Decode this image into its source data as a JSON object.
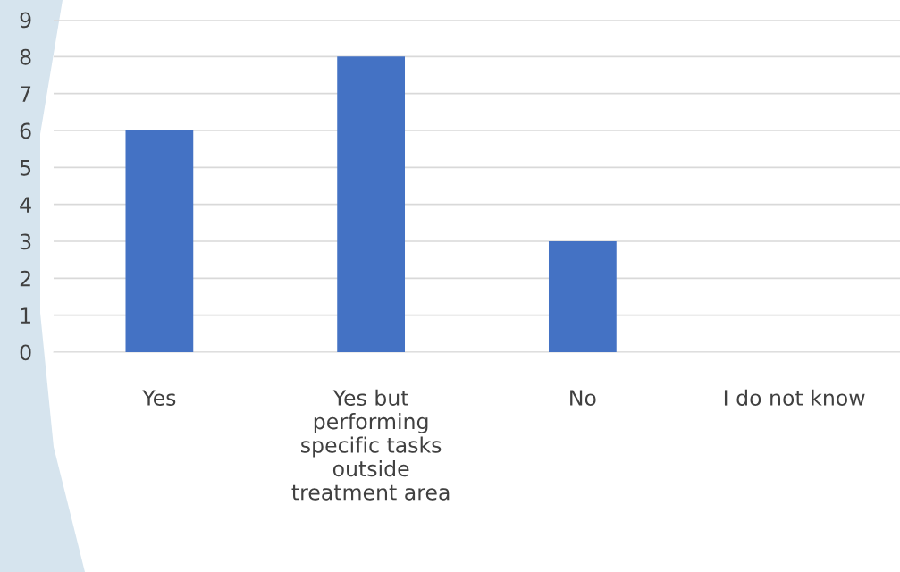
{
  "chart_data": {
    "type": "bar",
    "categories": [
      "Yes",
      "Yes but\nperforming\nspecific tasks\noutside\ntreatment area",
      "No",
      "I do not know"
    ],
    "values": [
      6,
      8,
      3,
      0
    ],
    "color": "#4472c4",
    "ylim": [
      0,
      9
    ],
    "yticks": [
      0,
      1,
      2,
      3,
      4,
      5,
      6,
      7,
      8,
      9
    ],
    "grid": "y"
  }
}
